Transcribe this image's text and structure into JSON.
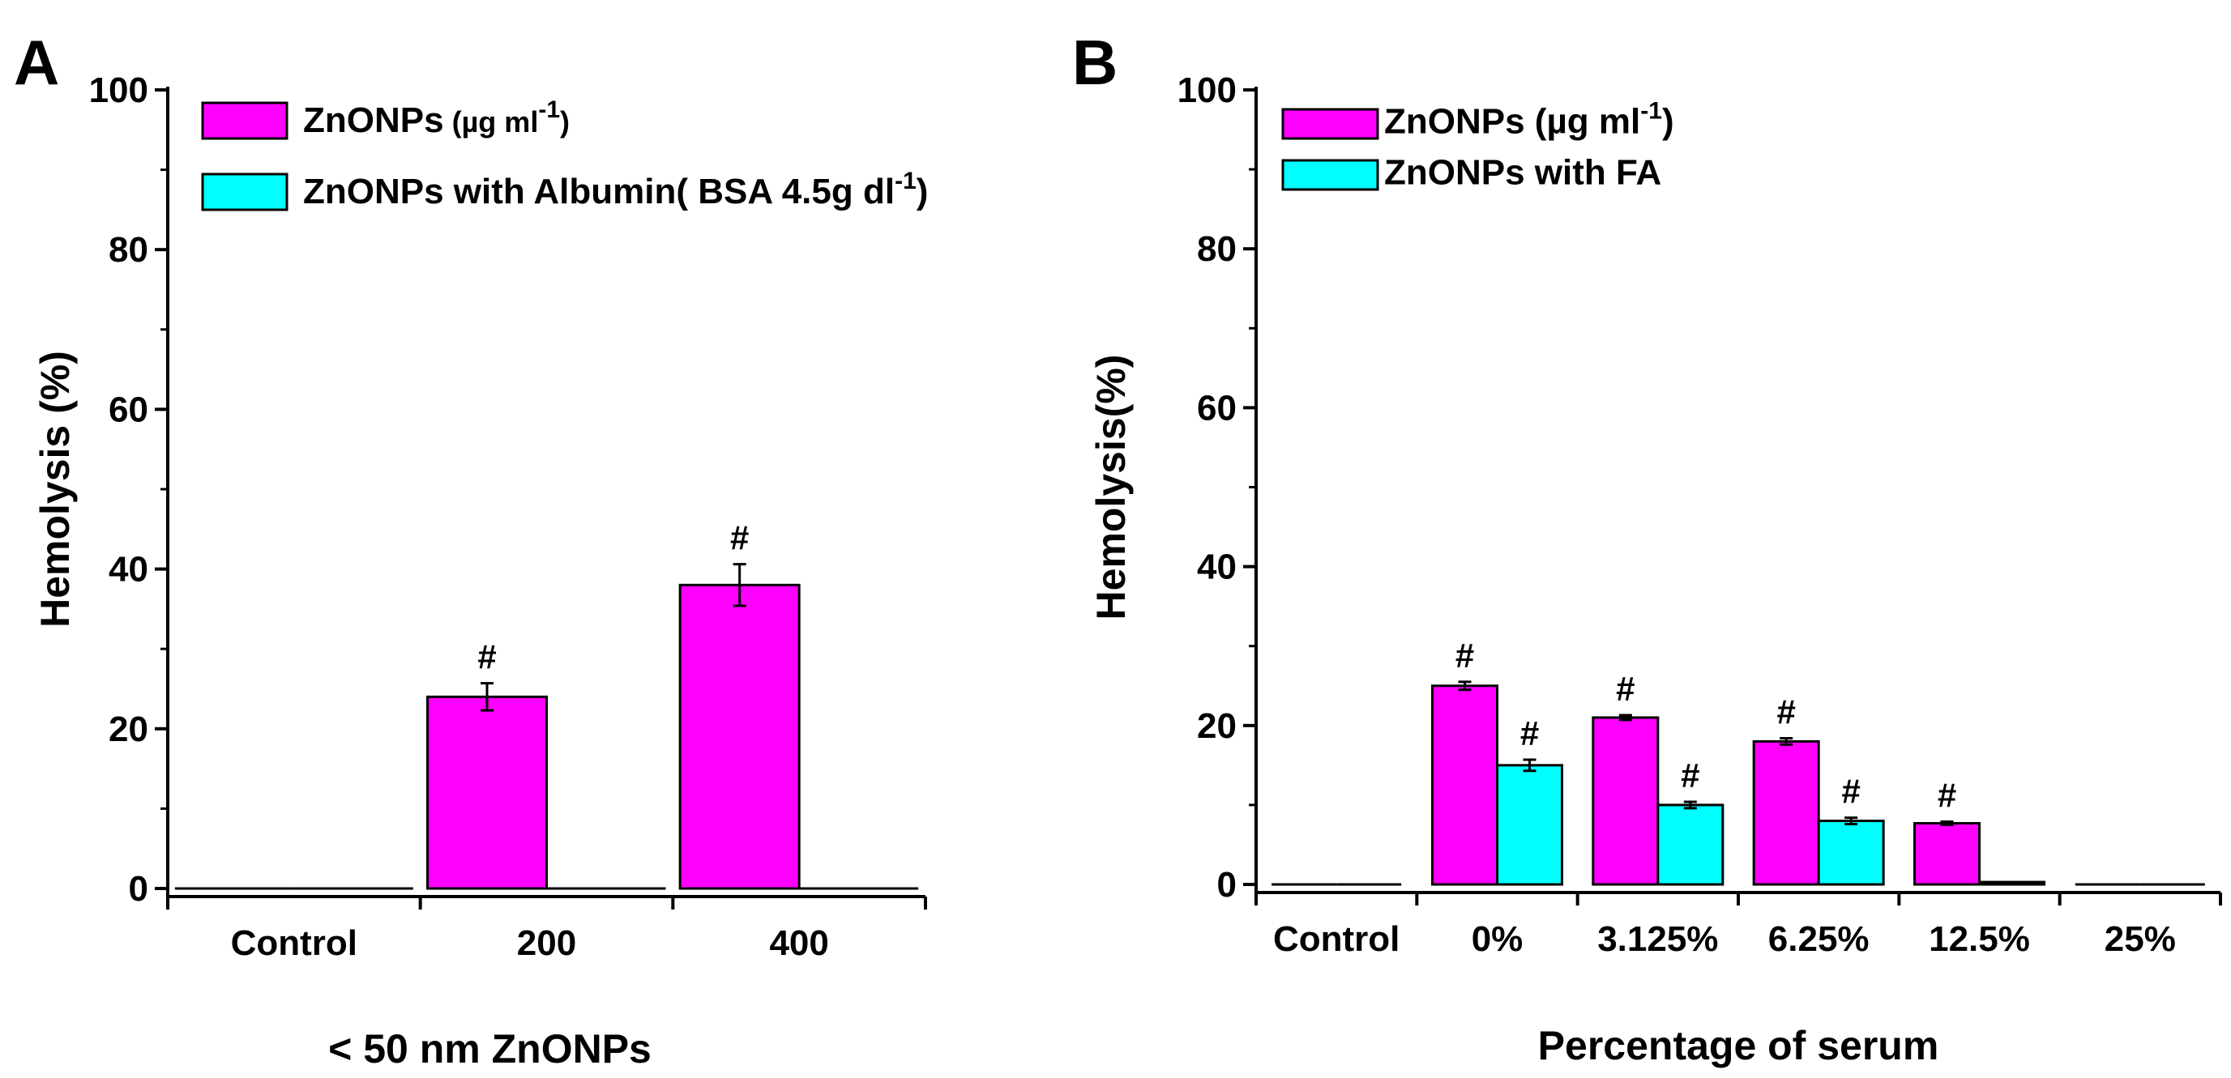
{
  "colors": {
    "magenta": "#FF00FF",
    "cyan": "#00FFFF",
    "axis": "#000000"
  },
  "chart_data": [
    {
      "type": "bar",
      "panel_label": "A",
      "title": "",
      "xlabel": "< 50 nm ZnONPs",
      "ylabel": "Hemolysis (%)",
      "ylim": [
        0,
        100
      ],
      "yticks": [
        "0",
        "20",
        "40",
        "60",
        "80",
        "100"
      ],
      "categories": [
        "Control",
        "200",
        "400"
      ],
      "legend_position": "top-left",
      "series": [
        {
          "name": "ZnONPs",
          "name_unit": "(µg ml",
          "name_sup": "-1",
          "name_close": ")",
          "color": "#FF00FF",
          "values": [
            0,
            24,
            38
          ],
          "errors": [
            0,
            1.7,
            2.6
          ],
          "marks": [
            "",
            "#",
            "#"
          ]
        },
        {
          "name": "ZnONPs with Albumin( BSA 4.5g dl",
          "name_unit": "",
          "name_sup": "-1",
          "name_close": ")",
          "color": "#00FFFF",
          "values": [
            0,
            0,
            0
          ],
          "errors": [
            0,
            0,
            0
          ],
          "marks": [
            "",
            "",
            ""
          ]
        }
      ]
    },
    {
      "type": "bar",
      "panel_label": "B",
      "title": "",
      "xlabel": "Percentage of serum",
      "ylabel": "Hemolysis(%)",
      "ylim": [
        0,
        100
      ],
      "yticks": [
        "0",
        "20",
        "40",
        "60",
        "80",
        "100"
      ],
      "categories": [
        "Control",
        "0%",
        "3.125%",
        "6.25%",
        "12.5%",
        "25%"
      ],
      "legend_position": "top-left",
      "series": [
        {
          "name": "ZnONPs",
          "name_unit": "(µg ml",
          "name_sup": "-1",
          "name_close": ")",
          "color": "#FF00FF",
          "values": [
            0,
            25,
            21,
            18,
            7.7,
            0
          ],
          "errors": [
            0,
            0.5,
            0.3,
            0.4,
            0.2,
            0
          ],
          "marks": [
            "",
            "#",
            "#",
            "#",
            "#",
            ""
          ]
        },
        {
          "name": "ZnONPs with FA",
          "name_unit": "",
          "name_sup": "",
          "name_close": "",
          "color": "#00FFFF",
          "values": [
            0,
            15,
            10,
            8,
            0.3,
            0
          ],
          "errors": [
            0,
            0.7,
            0.4,
            0.4,
            0,
            0
          ],
          "marks": [
            "",
            "#",
            "#",
            "#",
            "",
            ""
          ]
        }
      ]
    }
  ]
}
